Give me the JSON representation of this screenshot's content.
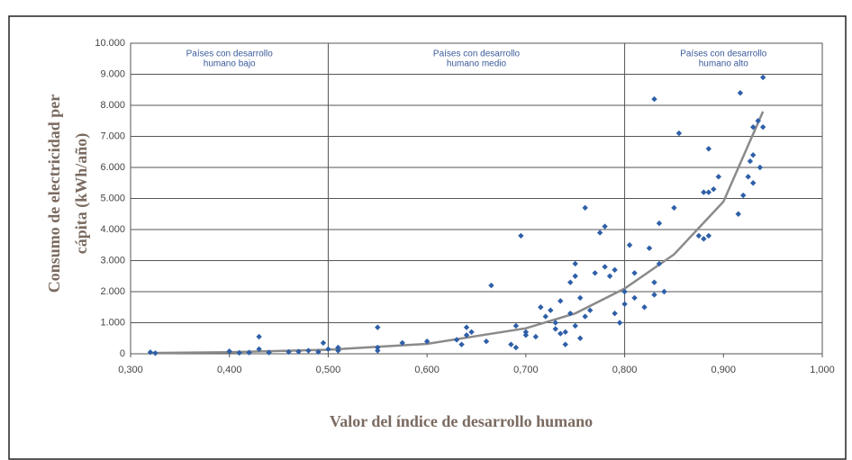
{
  "chart_data": {
    "type": "scatter",
    "xlabel": "Valor del índice de desarrollo humano",
    "ylabel": [
      "Consumo de electricidad per",
      "cápita (kWh/año)"
    ],
    "xlim": [
      0.3,
      1.0
    ],
    "ylim": [
      0,
      10000
    ],
    "xticks": [
      {
        "value": 0.3,
        "label": "0,300"
      },
      {
        "value": 0.4,
        "label": "0,400"
      },
      {
        "value": 0.5,
        "label": "0,500"
      },
      {
        "value": 0.6,
        "label": "0,600"
      },
      {
        "value": 0.7,
        "label": "0,700"
      },
      {
        "value": 0.8,
        "label": "0,800"
      },
      {
        "value": 0.9,
        "label": "0,900"
      },
      {
        "value": 1.0,
        "label": "1,000"
      }
    ],
    "yticks": [
      0,
      {
        "value": 1000,
        "label": "1.000"
      },
      {
        "value": 2000,
        "label": "2.000"
      },
      {
        "value": 3000,
        "label": "3.000"
      },
      {
        "value": 4000,
        "label": "4.000"
      },
      {
        "value": 5000,
        "label": "5.000"
      },
      {
        "value": 6000,
        "label": "6.000"
      },
      {
        "value": 7000,
        "label": "7.000"
      },
      {
        "value": 8000,
        "label": "8.000"
      },
      {
        "value": 9000,
        "label": "9.000"
      },
      {
        "value": 10000,
        "label": "10.000"
      }
    ],
    "grid": true,
    "dividers": [
      0.5,
      0.8
    ],
    "regions": [
      [
        "Países con desarrollo",
        "humano bajo"
      ],
      [
        "Países con desarrollo",
        "humano medio"
      ],
      [
        "Países con desarrollo",
        "humano alto"
      ]
    ],
    "series": [
      {
        "color": "#2e5fa8",
        "x": [
          0.32,
          0.325,
          0.4,
          0.41,
          0.42,
          0.43,
          0.43,
          0.44,
          0.46,
          0.47,
          0.48,
          0.49,
          0.495,
          0.5,
          0.51,
          0.51,
          0.55,
          0.55,
          0.55,
          0.575,
          0.6,
          0.63,
          0.635,
          0.64,
          0.64,
          0.645,
          0.66,
          0.665,
          0.685,
          0.69,
          0.69,
          0.695,
          0.7,
          0.7,
          0.71,
          0.715,
          0.72,
          0.725,
          0.73,
          0.73,
          0.735,
          0.735,
          0.74,
          0.74,
          0.745,
          0.745,
          0.75,
          0.75,
          0.75,
          0.755,
          0.755,
          0.76,
          0.76,
          0.765,
          0.77,
          0.775,
          0.78,
          0.78,
          0.785,
          0.79,
          0.79,
          0.795,
          0.8,
          0.8,
          0.805,
          0.81,
          0.81,
          0.82,
          0.825,
          0.83,
          0.83,
          0.83,
          0.835,
          0.835,
          0.84,
          0.85,
          0.855,
          0.875,
          0.88,
          0.88,
          0.885,
          0.885,
          0.885,
          0.89,
          0.895,
          0.915,
          0.917,
          0.92,
          0.925,
          0.927,
          0.93,
          0.93,
          0.93,
          0.935,
          0.937,
          0.94,
          0.94
        ],
        "values": [
          50,
          20,
          80,
          30,
          40,
          150,
          550,
          40,
          60,
          70,
          100,
          60,
          350,
          150,
          100,
          200,
          200,
          850,
          100,
          350,
          400,
          450,
          300,
          600,
          850,
          700,
          400,
          2200,
          300,
          200,
          900,
          3800,
          600,
          700,
          550,
          1500,
          1200,
          1400,
          800,
          1000,
          650,
          1700,
          700,
          300,
          2300,
          1300,
          2500,
          2900,
          900,
          500,
          1800,
          4700,
          1200,
          1400,
          2600,
          3900,
          4100,
          2800,
          2500,
          2700,
          1300,
          1000,
          1600,
          2000,
          3500,
          2600,
          1800,
          1500,
          3400,
          8200,
          2300,
          1900,
          2900,
          4200,
          2000,
          4700,
          7100,
          3800,
          5200,
          3700,
          6600,
          5200,
          3800,
          5300,
          5700,
          4500,
          8400,
          5100,
          5700,
          6200,
          6400,
          5500,
          7300,
          7500,
          6000,
          8900,
          7300
        ]
      }
    ],
    "trend": {
      "color": "#8a8a8a",
      "x": [
        0.32,
        0.4,
        0.5,
        0.6,
        0.7,
        0.75,
        0.8,
        0.85,
        0.9,
        0.94
      ],
      "values": [
        25,
        50,
        130,
        320,
        820,
        1300,
        2100,
        3200,
        4900,
        7800
      ]
    }
  }
}
